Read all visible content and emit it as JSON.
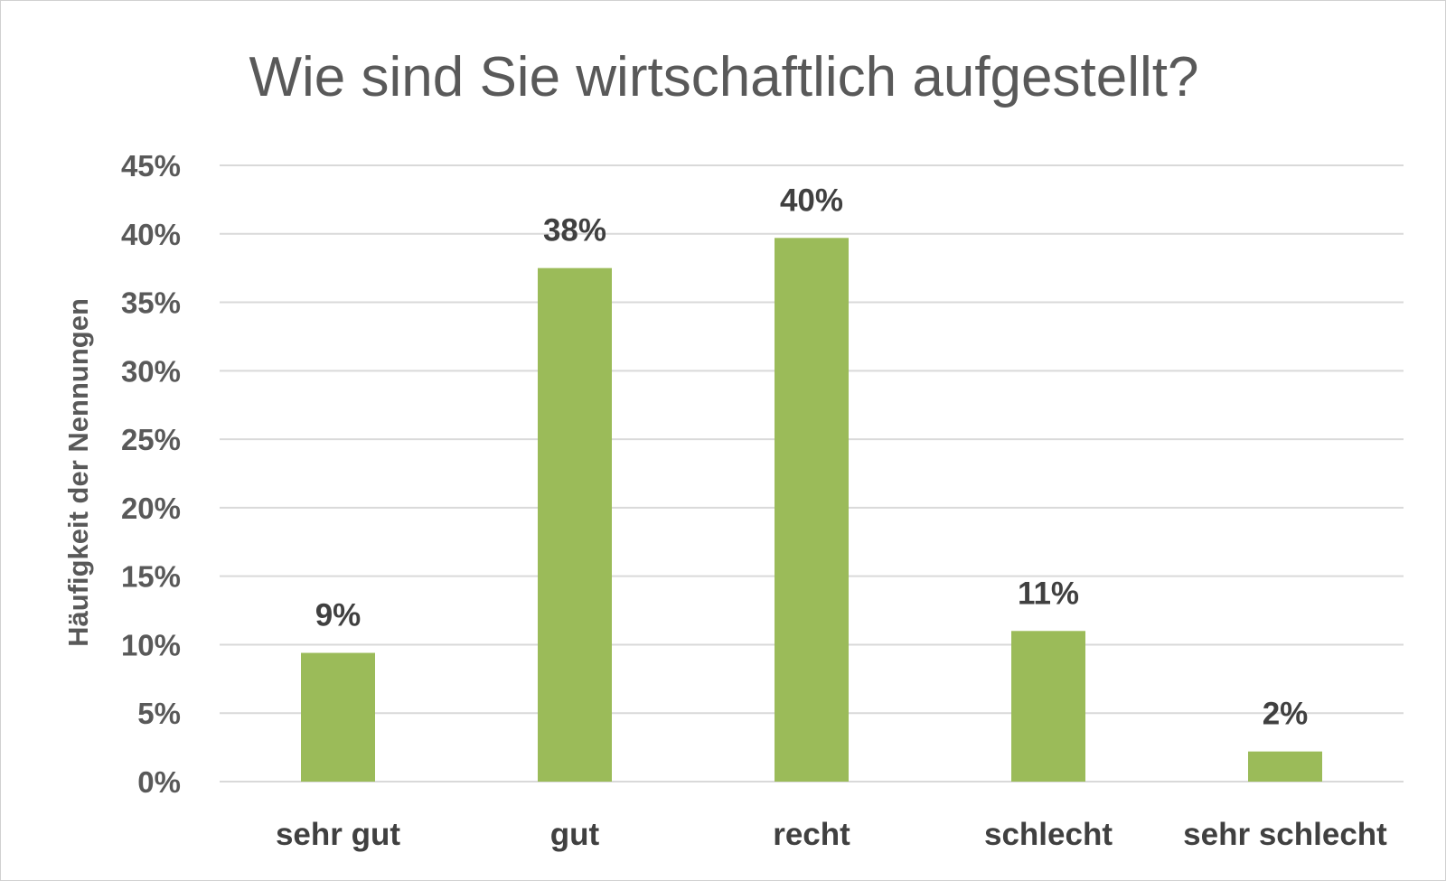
{
  "chart_data": {
    "type": "bar",
    "title": "Wie sind Sie wirtschaftlich aufgestellt?",
    "xlabel": "",
    "ylabel": "Häufigkeit der Nennungen",
    "categories": [
      "sehr gut",
      "gut",
      "recht",
      "schlecht",
      "sehr schlecht"
    ],
    "values": [
      9.4,
      37.5,
      39.7,
      11.0,
      2.2
    ],
    "data_labels": [
      "9%",
      "38%",
      "40%",
      "11%",
      "2%"
    ],
    "ylim": [
      0,
      45
    ],
    "yticks": [
      0,
      5,
      10,
      15,
      20,
      25,
      30,
      35,
      40,
      45
    ],
    "ytick_labels": [
      "0%",
      "5%",
      "10%",
      "15%",
      "20%",
      "25%",
      "30%",
      "35%",
      "40%",
      "45%"
    ],
    "grid": true,
    "legend": "none",
    "bar_color": "#9bbb59",
    "grid_color": "#d9d9d9"
  }
}
